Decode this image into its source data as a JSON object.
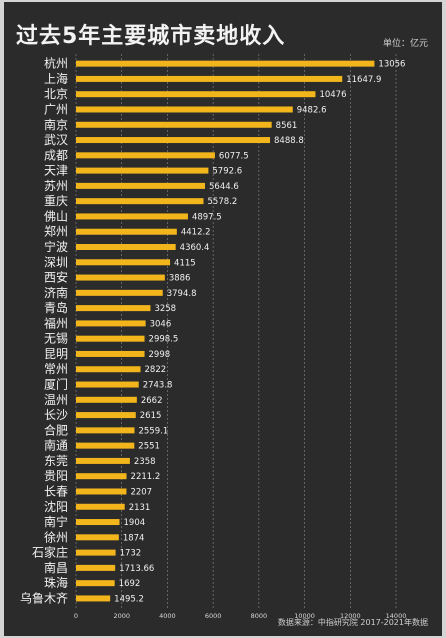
{
  "chart_data": {
    "type": "bar",
    "orientation": "horizontal",
    "title": "过去5年主要城市卖地收入",
    "unit": "单位：亿元",
    "source": "数据来源：中指研究院  2017-2021年数据",
    "categories": [
      "杭州",
      "上海",
      "北京",
      "广州",
      "南京",
      "武汉",
      "成都",
      "天津",
      "苏州",
      "重庆",
      "佛山",
      "郑州",
      "宁波",
      "深圳",
      "西安",
      "济南",
      "青岛",
      "福州",
      "无锡",
      "昆明",
      "常州",
      "厦门",
      "温州",
      "长沙",
      "合肥",
      "南通",
      "东莞",
      "贵阳",
      "长春",
      "沈阳",
      "南宁",
      "徐州",
      "石家庄",
      "南昌",
      "珠海",
      "乌鲁木齐"
    ],
    "values": [
      13056,
      11647.9,
      10476,
      9482.6,
      8561,
      8488.8,
      6077.5,
      5792.6,
      5644.6,
      5578.2,
      4897.5,
      4412.2,
      4360.4,
      4115,
      3886,
      3794.8,
      3258,
      3046,
      2998.5,
      2998,
      2822,
      2743.8,
      2662,
      2615,
      2559.1,
      2551,
      2358,
      2211.2,
      2207,
      2131,
      1904,
      1874,
      1732,
      1713.66,
      1692,
      1495.2
    ],
    "value_labels": [
      "13056",
      "11647.9",
      "10476",
      "9482.6",
      "8561",
      "8488.8",
      "6077.5",
      "5792.6",
      "5644.6",
      "5578.2",
      "4897.5",
      "4412.2",
      "4360.4",
      "4115",
      "3886",
      "3794.8",
      "3258",
      "3046",
      "2998.5",
      "2998",
      "2822",
      "2743.8",
      "2662",
      "2615",
      "2559.1",
      "2551",
      "2358",
      "2211.2",
      "2207",
      "2131",
      "1904",
      "1874",
      "1732",
      "1713.66",
      "1692",
      "1495.2"
    ],
    "xlim": [
      0,
      14000
    ],
    "xticks": [
      0,
      2000,
      4000,
      6000,
      8000,
      10000,
      12000,
      14000
    ],
    "grid": true,
    "colors": {
      "background": "#2b2b2b",
      "bar": "#f2b61c",
      "text": "#f1f1f1",
      "grid": "#8a8a8a"
    }
  }
}
